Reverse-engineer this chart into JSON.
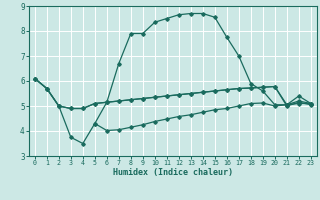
{
  "xlabel": "Humidex (Indice chaleur)",
  "bg_color": "#cce8e5",
  "line_color": "#1a6b5e",
  "grid_color": "#ffffff",
  "xlim": [
    -0.5,
    23.5
  ],
  "ylim": [
    3,
    9
  ],
  "xticks": [
    0,
    1,
    2,
    3,
    4,
    5,
    6,
    7,
    8,
    9,
    10,
    11,
    12,
    13,
    14,
    15,
    16,
    17,
    18,
    19,
    20,
    21,
    22,
    23
  ],
  "yticks": [
    3,
    4,
    5,
    6,
    7,
    8,
    9
  ],
  "series_big_x": [
    0,
    1,
    2,
    3,
    4,
    5,
    6,
    7,
    8,
    9,
    10,
    11,
    12,
    13,
    14,
    15,
    16,
    17,
    18,
    19,
    20,
    21,
    22,
    23
  ],
  "series_big_y": [
    6.1,
    5.7,
    5.0,
    3.75,
    3.5,
    4.3,
    5.15,
    6.7,
    7.9,
    7.9,
    8.35,
    8.5,
    8.65,
    8.7,
    8.7,
    8.55,
    7.75,
    7.0,
    5.9,
    5.6,
    5.05,
    5.05,
    5.4,
    5.1
  ],
  "series_flat1_x": [
    0,
    1,
    2,
    3,
    4,
    5,
    6,
    7,
    8,
    9,
    10,
    11,
    12,
    13,
    14,
    15,
    16,
    17,
    18,
    19,
    20,
    21,
    22,
    23
  ],
  "series_flat1_y": [
    6.1,
    5.7,
    5.0,
    4.9,
    4.9,
    5.1,
    5.15,
    5.2,
    5.25,
    5.3,
    5.35,
    5.4,
    5.45,
    5.5,
    5.55,
    5.6,
    5.65,
    5.7,
    5.72,
    5.75,
    5.78,
    5.05,
    5.1,
    5.1
  ],
  "series_flat2_x": [
    0,
    1,
    2,
    3,
    4,
    5,
    6,
    7,
    8,
    9,
    10,
    11,
    12,
    13,
    14,
    15,
    16,
    17,
    18,
    19,
    20,
    21,
    22,
    23
  ],
  "series_flat2_y": [
    6.1,
    5.7,
    5.0,
    4.9,
    4.9,
    5.1,
    5.15,
    5.2,
    5.25,
    5.3,
    5.35,
    5.4,
    5.45,
    5.5,
    5.55,
    5.6,
    5.65,
    5.7,
    5.72,
    5.75,
    5.78,
    5.0,
    5.15,
    5.05
  ],
  "series_low_x": [
    5,
    6,
    7,
    8,
    9,
    10,
    11,
    12,
    13,
    14,
    15,
    16,
    17,
    18,
    19,
    20,
    21,
    22,
    23
  ],
  "series_low_y": [
    4.3,
    4.02,
    4.05,
    4.15,
    4.25,
    4.38,
    4.48,
    4.58,
    4.65,
    4.75,
    4.85,
    4.9,
    5.0,
    5.1,
    5.12,
    5.0,
    5.05,
    5.2,
    5.1
  ]
}
